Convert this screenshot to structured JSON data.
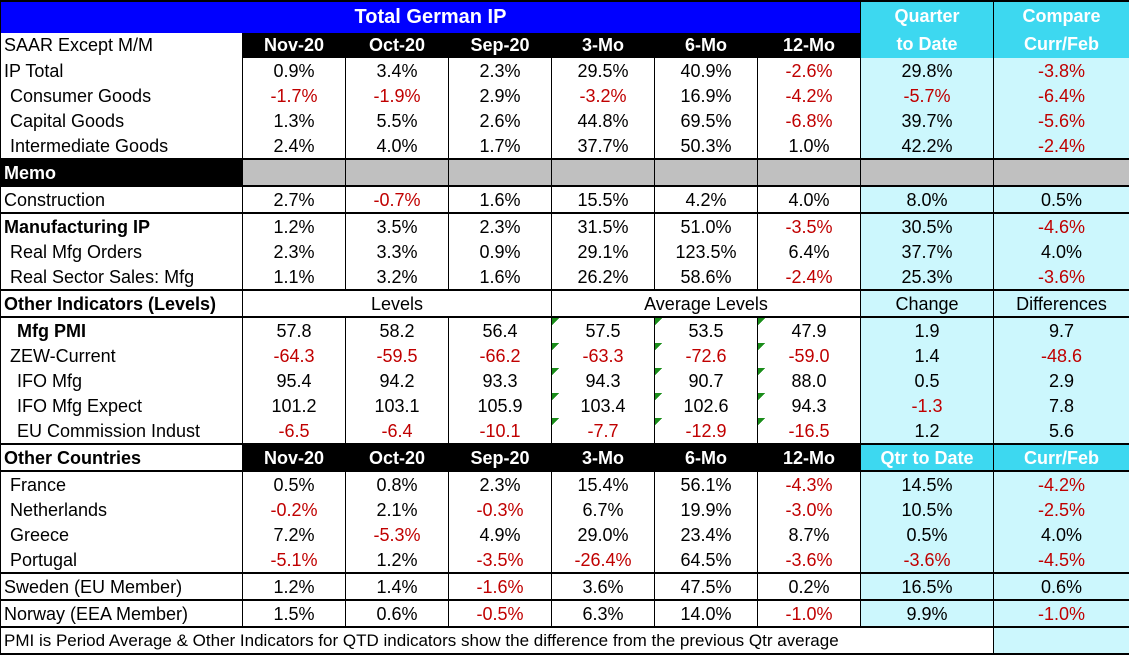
{
  "title": "Total German IP",
  "qtd_header": [
    "Quarter",
    "to Date"
  ],
  "compare_header": [
    "Compare",
    "Curr/Feb"
  ],
  "columns": [
    "Nov-20",
    "Oct-20",
    "Sep-20",
    "3-Mo",
    "6-Mo",
    "12-Mo"
  ],
  "units_label": "SAAR Except M/M",
  "main_rows": [
    {
      "label": "IP Total",
      "values": [
        "0.9%",
        "3.4%",
        "2.3%",
        "29.5%",
        "40.9%",
        "-2.6%"
      ],
      "qtd": "29.8%",
      "compare": "-3.8%"
    },
    {
      "label": "Consumer Goods",
      "values": [
        "-1.7%",
        "-1.9%",
        "2.9%",
        "-3.2%",
        "16.9%",
        "-4.2%"
      ],
      "qtd": "-5.7%",
      "compare": "-6.4%"
    },
    {
      "label": "Capital Goods",
      "values": [
        "1.3%",
        "5.5%",
        "2.6%",
        "44.8%",
        "69.5%",
        "-6.8%"
      ],
      "qtd": "39.7%",
      "compare": "-5.6%"
    },
    {
      "label": "Intermediate Goods",
      "values": [
        "2.4%",
        "4.0%",
        "1.7%",
        "37.7%",
        "50.3%",
        "1.0%"
      ],
      "qtd": "42.2%",
      "compare": "-2.4%"
    }
  ],
  "memo_label": "Memo",
  "construction": {
    "label": "Construction",
    "values": [
      "2.7%",
      "-0.7%",
      "1.6%",
      "15.5%",
      "4.2%",
      "4.0%"
    ],
    "qtd": "8.0%",
    "compare": "0.5%"
  },
  "mfg_rows": [
    {
      "label": "Manufacturing IP",
      "values": [
        "1.2%",
        "3.5%",
        "2.3%",
        "31.5%",
        "51.0%",
        "-3.5%"
      ],
      "qtd": "30.5%",
      "compare": "-4.6%"
    },
    {
      "label": "Real Mfg Orders",
      "values": [
        "2.3%",
        "3.3%",
        "0.9%",
        "29.1%",
        "123.5%",
        "6.4%"
      ],
      "qtd": "37.7%",
      "compare": "4.0%"
    },
    {
      "label": "Real Sector Sales: Mfg",
      "values": [
        "1.1%",
        "3.2%",
        "1.6%",
        "26.2%",
        "58.6%",
        "-2.4%"
      ],
      "qtd": "25.3%",
      "compare": "-3.6%"
    }
  ],
  "other_indicators": {
    "label": "Other Indicators (Levels)",
    "levels_label": "Levels",
    "avg_label": "Average Levels",
    "change_label": "Change",
    "diff_label": "Differences",
    "rows": [
      {
        "label": "Mfg PMI",
        "values": [
          "57.8",
          "58.2",
          "56.4",
          "57.5",
          "53.5",
          "47.9"
        ],
        "qtd": "1.9",
        "compare": "9.7"
      },
      {
        "label": "ZEW-Current",
        "values": [
          "-64.3",
          "-59.5",
          "-66.2",
          "-63.3",
          "-72.6",
          "-59.0"
        ],
        "qtd": "1.4",
        "compare": "-48.6"
      },
      {
        "label": "IFO Mfg",
        "values": [
          "95.4",
          "94.2",
          "93.3",
          "94.3",
          "90.7",
          "88.0"
        ],
        "qtd": "0.5",
        "compare": "2.9"
      },
      {
        "label": "IFO Mfg Expect",
        "values": [
          "101.2",
          "103.1",
          "105.9",
          "103.4",
          "102.6",
          "94.3"
        ],
        "qtd": "-1.3",
        "compare": "7.8"
      },
      {
        "label": "EU Commission Indust",
        "values": [
          "-6.5",
          "-6.4",
          "-10.1",
          "-7.7",
          "-12.9",
          "-16.5"
        ],
        "qtd": "1.2",
        "compare": "5.6"
      }
    ]
  },
  "other_countries": {
    "label": "Other Countries",
    "qtd_label": "Qtr to Date",
    "compare_label": "Curr/Feb",
    "rows": [
      {
        "label": "France",
        "values": [
          "0.5%",
          "0.8%",
          "2.3%",
          "15.4%",
          "56.1%",
          "-4.3%"
        ],
        "qtd": "14.5%",
        "compare": "-4.2%"
      },
      {
        "label": "Netherlands",
        "values": [
          "-0.2%",
          "2.1%",
          "-0.3%",
          "6.7%",
          "19.9%",
          "-3.0%"
        ],
        "qtd": "10.5%",
        "compare": "-2.5%"
      },
      {
        "label": "Greece",
        "values": [
          "7.2%",
          "-5.3%",
          "4.9%",
          "29.0%",
          "23.4%",
          "8.7%"
        ],
        "qtd": "0.5%",
        "compare": "4.0%"
      },
      {
        "label": "Portugal",
        "values": [
          "-5.1%",
          "1.2%",
          "-3.5%",
          "-26.4%",
          "64.5%",
          "-3.6%"
        ],
        "qtd": "-3.6%",
        "compare": "-4.5%"
      }
    ]
  },
  "sweden": {
    "label": "Sweden (EU Member)",
    "values": [
      "1.2%",
      "1.4%",
      "-1.6%",
      "3.6%",
      "47.5%",
      "0.2%"
    ],
    "qtd": "16.5%",
    "compare": "0.6%"
  },
  "norway": {
    "label": "Norway (EEA Member)",
    "values": [
      "1.5%",
      "0.6%",
      "-0.5%",
      "6.3%",
      "14.0%",
      "-1.0%"
    ],
    "qtd": "9.9%",
    "compare": "-1.0%"
  },
  "footnote": "PMI is Period Average & Other Indicators for QTD indicators show the difference from the previous Qtr average",
  "colors": {
    "title_bg": "#0000ff",
    "cyan_bg": "#ccf7fd",
    "cyan_header": "#3dd8f0",
    "negative": "#c00000",
    "memo_gray": "#c0c0c0"
  }
}
